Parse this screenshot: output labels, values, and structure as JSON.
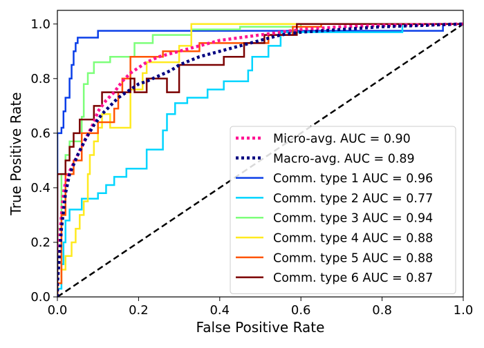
{
  "chart_data": {
    "type": "line",
    "title": "",
    "xlabel": "False Positive Rate",
    "ylabel": "True Positive Rate",
    "xlim": [
      0.0,
      1.0
    ],
    "ylim": [
      0.0,
      1.05
    ],
    "xticks": [
      "0.0",
      "0.2",
      "0.4",
      "0.6",
      "0.8",
      "1.0"
    ],
    "yticks": [
      "0.0",
      "0.2",
      "0.4",
      "0.6",
      "0.8",
      "1.0"
    ],
    "grid": false,
    "legend_position": "lower-right",
    "diagonal": {
      "color": "#000000",
      "style": "dashed",
      "points": [
        [
          0,
          0
        ],
        [
          1,
          1
        ]
      ]
    },
    "series": [
      {
        "name": "Micro-avg. AUC = 0.90",
        "color": "#ff1493",
        "style": "dotted",
        "points": [
          [
            0,
            0
          ],
          [
            0,
            0.05
          ],
          [
            0.005,
            0.2
          ],
          [
            0.01,
            0.3
          ],
          [
            0.015,
            0.38
          ],
          [
            0.02,
            0.42
          ],
          [
            0.03,
            0.46
          ],
          [
            0.05,
            0.52
          ],
          [
            0.07,
            0.58
          ],
          [
            0.09,
            0.64
          ],
          [
            0.1,
            0.68
          ],
          [
            0.12,
            0.72
          ],
          [
            0.14,
            0.75
          ],
          [
            0.16,
            0.79
          ],
          [
            0.18,
            0.82
          ],
          [
            0.2,
            0.84
          ],
          [
            0.22,
            0.86
          ],
          [
            0.25,
            0.88
          ],
          [
            0.3,
            0.9
          ],
          [
            0.35,
            0.92
          ],
          [
            0.4,
            0.94
          ],
          [
            0.45,
            0.95
          ],
          [
            0.5,
            0.96
          ],
          [
            0.55,
            0.97
          ],
          [
            0.6,
            0.98
          ],
          [
            0.7,
            0.99
          ],
          [
            0.8,
            0.995
          ],
          [
            1,
            1
          ]
        ]
      },
      {
        "name": "Macro-avg. AUC = 0.89",
        "color": "#000080",
        "style": "dotted",
        "points": [
          [
            0,
            0
          ],
          [
            0,
            0.05
          ],
          [
            0.005,
            0.15
          ],
          [
            0.01,
            0.25
          ],
          [
            0.02,
            0.38
          ],
          [
            0.03,
            0.45
          ],
          [
            0.05,
            0.52
          ],
          [
            0.07,
            0.58
          ],
          [
            0.09,
            0.63
          ],
          [
            0.11,
            0.67
          ],
          [
            0.13,
            0.7
          ],
          [
            0.15,
            0.73
          ],
          [
            0.18,
            0.76
          ],
          [
            0.2,
            0.78
          ],
          [
            0.22,
            0.79
          ],
          [
            0.25,
            0.81
          ],
          [
            0.28,
            0.83
          ],
          [
            0.3,
            0.85
          ],
          [
            0.35,
            0.88
          ],
          [
            0.4,
            0.9
          ],
          [
            0.45,
            0.92
          ],
          [
            0.5,
            0.94
          ],
          [
            0.55,
            0.96
          ],
          [
            0.6,
            0.97
          ],
          [
            0.7,
            0.98
          ],
          [
            0.8,
            0.99
          ],
          [
            1,
            1
          ]
        ]
      },
      {
        "name": "Comm. type 1 AUC = 0.96",
        "color": "#0a3ee8",
        "style": "solid",
        "points": [
          [
            0,
            0
          ],
          [
            0,
            0.6
          ],
          [
            0.01,
            0.6
          ],
          [
            0.01,
            0.62
          ],
          [
            0.015,
            0.62
          ],
          [
            0.015,
            0.68
          ],
          [
            0.02,
            0.68
          ],
          [
            0.02,
            0.73
          ],
          [
            0.03,
            0.73
          ],
          [
            0.03,
            0.8
          ],
          [
            0.035,
            0.8
          ],
          [
            0.035,
            0.85
          ],
          [
            0.04,
            0.85
          ],
          [
            0.04,
            0.9
          ],
          [
            0.045,
            0.9
          ],
          [
            0.045,
            0.93
          ],
          [
            0.05,
            0.93
          ],
          [
            0.05,
            0.95
          ],
          [
            0.1,
            0.95
          ],
          [
            0.1,
            0.975
          ],
          [
            0.95,
            0.975
          ],
          [
            0.95,
            1
          ],
          [
            1,
            1
          ]
        ]
      },
      {
        "name": "Comm. type 2 AUC = 0.77",
        "color": "#00d5ff",
        "style": "solid",
        "points": [
          [
            0,
            0
          ],
          [
            0,
            0.03
          ],
          [
            0.01,
            0.03
          ],
          [
            0.01,
            0.12
          ],
          [
            0.015,
            0.12
          ],
          [
            0.015,
            0.2
          ],
          [
            0.02,
            0.2
          ],
          [
            0.02,
            0.28
          ],
          [
            0.03,
            0.28
          ],
          [
            0.03,
            0.32
          ],
          [
            0.06,
            0.32
          ],
          [
            0.06,
            0.36
          ],
          [
            0.1,
            0.36
          ],
          [
            0.1,
            0.38
          ],
          [
            0.12,
            0.38
          ],
          [
            0.12,
            0.41
          ],
          [
            0.14,
            0.41
          ],
          [
            0.14,
            0.44
          ],
          [
            0.17,
            0.44
          ],
          [
            0.17,
            0.47
          ],
          [
            0.22,
            0.47
          ],
          [
            0.22,
            0.54
          ],
          [
            0.26,
            0.54
          ],
          [
            0.26,
            0.61
          ],
          [
            0.27,
            0.61
          ],
          [
            0.27,
            0.67
          ],
          [
            0.29,
            0.67
          ],
          [
            0.29,
            0.71
          ],
          [
            0.32,
            0.71
          ],
          [
            0.32,
            0.73
          ],
          [
            0.37,
            0.73
          ],
          [
            0.37,
            0.76
          ],
          [
            0.41,
            0.76
          ],
          [
            0.41,
            0.79
          ],
          [
            0.47,
            0.79
          ],
          [
            0.47,
            0.83
          ],
          [
            0.48,
            0.83
          ],
          [
            0.48,
            0.88
          ],
          [
            0.52,
            0.88
          ],
          [
            0.52,
            0.92
          ],
          [
            0.55,
            0.92
          ],
          [
            0.55,
            0.97
          ],
          [
            0.85,
            0.97
          ],
          [
            0.85,
            1
          ],
          [
            1,
            1
          ]
        ]
      },
      {
        "name": "Comm. type 3 AUC = 0.94",
        "color": "#7dff7a",
        "style": "solid",
        "points": [
          [
            0,
            0
          ],
          [
            0,
            0.25
          ],
          [
            0.01,
            0.25
          ],
          [
            0.01,
            0.45
          ],
          [
            0.02,
            0.45
          ],
          [
            0.02,
            0.52
          ],
          [
            0.03,
            0.52
          ],
          [
            0.03,
            0.57
          ],
          [
            0.06,
            0.57
          ],
          [
            0.06,
            0.66
          ],
          [
            0.065,
            0.66
          ],
          [
            0.065,
            0.78
          ],
          [
            0.075,
            0.78
          ],
          [
            0.075,
            0.82
          ],
          [
            0.09,
            0.82
          ],
          [
            0.09,
            0.86
          ],
          [
            0.13,
            0.86
          ],
          [
            0.13,
            0.88
          ],
          [
            0.19,
            0.88
          ],
          [
            0.19,
            0.93
          ],
          [
            0.235,
            0.93
          ],
          [
            0.235,
            0.96
          ],
          [
            0.33,
            0.96
          ],
          [
            0.33,
            0.98
          ],
          [
            0.45,
            0.98
          ],
          [
            0.45,
            0.99
          ],
          [
            0.6,
            0.99
          ],
          [
            0.6,
            1
          ],
          [
            1,
            1
          ]
        ]
      },
      {
        "name": "Comm. type 4 AUC = 0.88",
        "color": "#ffea1f",
        "style": "solid",
        "points": [
          [
            0,
            0
          ],
          [
            0,
            0.05
          ],
          [
            0.01,
            0.05
          ],
          [
            0.01,
            0.1
          ],
          [
            0.02,
            0.1
          ],
          [
            0.02,
            0.15
          ],
          [
            0.035,
            0.15
          ],
          [
            0.035,
            0.2
          ],
          [
            0.045,
            0.2
          ],
          [
            0.045,
            0.25
          ],
          [
            0.055,
            0.25
          ],
          [
            0.055,
            0.3
          ],
          [
            0.065,
            0.3
          ],
          [
            0.065,
            0.35
          ],
          [
            0.075,
            0.35
          ],
          [
            0.075,
            0.45
          ],
          [
            0.08,
            0.45
          ],
          [
            0.08,
            0.52
          ],
          [
            0.09,
            0.52
          ],
          [
            0.09,
            0.57
          ],
          [
            0.1,
            0.57
          ],
          [
            0.1,
            0.62
          ],
          [
            0.11,
            0.62
          ],
          [
            0.11,
            0.67
          ],
          [
            0.13,
            0.67
          ],
          [
            0.13,
            0.62
          ],
          [
            0.18,
            0.62
          ],
          [
            0.18,
            0.76
          ],
          [
            0.21,
            0.76
          ],
          [
            0.21,
            0.82
          ],
          [
            0.22,
            0.82
          ],
          [
            0.22,
            0.86
          ],
          [
            0.3,
            0.86
          ],
          [
            0.3,
            0.92
          ],
          [
            0.33,
            0.92
          ],
          [
            0.33,
            1
          ],
          [
            1,
            1
          ]
        ]
      },
      {
        "name": "Comm. type 5 AUC = 0.88",
        "color": "#ff5400",
        "style": "solid",
        "points": [
          [
            0,
            0
          ],
          [
            0,
            0.05
          ],
          [
            0.01,
            0.05
          ],
          [
            0.01,
            0.3
          ],
          [
            0.02,
            0.3
          ],
          [
            0.02,
            0.45
          ],
          [
            0.04,
            0.45
          ],
          [
            0.04,
            0.5
          ],
          [
            0.06,
            0.5
          ],
          [
            0.06,
            0.6
          ],
          [
            0.1,
            0.6
          ],
          [
            0.1,
            0.64
          ],
          [
            0.14,
            0.64
          ],
          [
            0.14,
            0.69
          ],
          [
            0.15,
            0.69
          ],
          [
            0.15,
            0.75
          ],
          [
            0.16,
            0.75
          ],
          [
            0.16,
            0.8
          ],
          [
            0.18,
            0.8
          ],
          [
            0.18,
            0.88
          ],
          [
            0.26,
            0.88
          ],
          [
            0.26,
            0.9
          ],
          [
            0.35,
            0.9
          ],
          [
            0.35,
            0.93
          ],
          [
            0.52,
            0.93
          ],
          [
            0.52,
            0.96
          ],
          [
            0.58,
            0.96
          ],
          [
            0.58,
            0.99
          ],
          [
            0.65,
            0.99
          ],
          [
            0.65,
            1
          ],
          [
            1,
            1
          ]
        ]
      },
      {
        "name": "Comm. type 6 AUC = 0.87",
        "color": "#7a0000",
        "style": "solid",
        "points": [
          [
            0,
            0
          ],
          [
            0,
            0.45
          ],
          [
            0.02,
            0.45
          ],
          [
            0.02,
            0.5
          ],
          [
            0.03,
            0.5
          ],
          [
            0.03,
            0.55
          ],
          [
            0.04,
            0.55
          ],
          [
            0.04,
            0.6
          ],
          [
            0.055,
            0.6
          ],
          [
            0.055,
            0.65
          ],
          [
            0.09,
            0.65
          ],
          [
            0.09,
            0.7
          ],
          [
            0.11,
            0.7
          ],
          [
            0.11,
            0.75
          ],
          [
            0.18,
            0.75
          ],
          [
            0.18,
            0.8
          ],
          [
            0.19,
            0.8
          ],
          [
            0.19,
            0.75
          ],
          [
            0.22,
            0.75
          ],
          [
            0.22,
            0.8
          ],
          [
            0.27,
            0.8
          ],
          [
            0.27,
            0.75
          ],
          [
            0.3,
            0.75
          ],
          [
            0.3,
            0.85
          ],
          [
            0.41,
            0.85
          ],
          [
            0.41,
            0.88
          ],
          [
            0.46,
            0.88
          ],
          [
            0.46,
            0.93
          ],
          [
            0.51,
            0.93
          ],
          [
            0.51,
            0.96
          ],
          [
            0.59,
            0.96
          ],
          [
            0.59,
            1
          ],
          [
            1,
            1
          ]
        ]
      }
    ]
  }
}
